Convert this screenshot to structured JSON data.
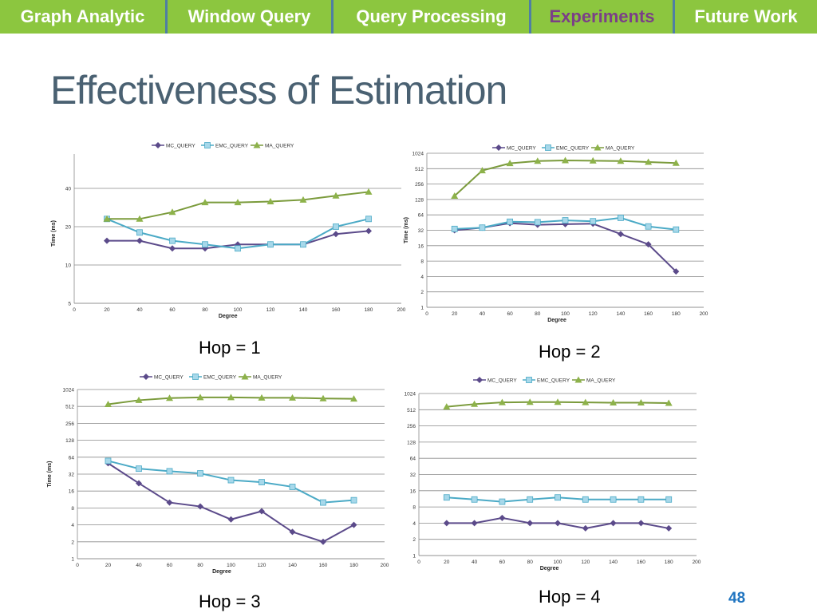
{
  "nav": {
    "tabs": [
      {
        "label": "Graph Analytic"
      },
      {
        "label": "Window Query"
      },
      {
        "label": "Query Processing"
      },
      {
        "label": "Experiments",
        "active": true
      },
      {
        "label": "Future Work"
      }
    ]
  },
  "slide": {
    "title": "Effectiveness of Estimation",
    "page_number": "48"
  },
  "colors": {
    "nav_bg": "#8cc63f",
    "active_tab": "#7b3f87",
    "title": "#4a6172",
    "mc": "#5b4a8a",
    "emc": "#4baac6",
    "emc_marker": "#a7d8ea",
    "ma": "#7b9b3c",
    "ma_marker": "#8db24a"
  },
  "chart_data": [
    {
      "type": "line",
      "caption": "Hop = 1",
      "xlabel": "Degree",
      "ylabel": "Time (ms)",
      "x_ticks": [
        "0",
        "20",
        "40",
        "60",
        "80",
        "100",
        "120",
        "140",
        "160",
        "180",
        "200"
      ],
      "y_ticks": [
        "5",
        "10",
        "20",
        "40"
      ],
      "x": [
        20,
        40,
        60,
        80,
        100,
        120,
        140,
        160,
        180
      ],
      "series": [
        {
          "name": "MC_QUERY",
          "values": [
            15.5,
            15.5,
            13.5,
            13.5,
            14.5,
            14.5,
            14.5,
            17.5,
            18.5
          ]
        },
        {
          "name": "EMC_QUERY",
          "values": [
            23,
            18,
            15.5,
            14.5,
            13.5,
            14.5,
            14.5,
            20,
            23
          ]
        },
        {
          "name": "MA_QUERY",
          "values": [
            23,
            23,
            26,
            31,
            31,
            31.5,
            32.5,
            35,
            37.5
          ]
        }
      ]
    },
    {
      "type": "line",
      "caption": "Hop = 2",
      "xlabel": "Degree",
      "ylabel": "Time (ms)",
      "x_ticks": [
        "0",
        "20",
        "40",
        "60",
        "80",
        "100",
        "120",
        "140",
        "160",
        "180",
        "200"
      ],
      "y_ticks": [
        "1",
        "2",
        "4",
        "8",
        "16",
        "32",
        "64",
        "128",
        "256",
        "512",
        "1024"
      ],
      "x": [
        20,
        40,
        60,
        80,
        100,
        120,
        140,
        160,
        180
      ],
      "series": [
        {
          "name": "MC_QUERY",
          "values": [
            32,
            36,
            44,
            41,
            42,
            43,
            27,
            17,
            5
          ]
        },
        {
          "name": "EMC_QUERY",
          "values": [
            34,
            36,
            47,
            46,
            50,
            48,
            56,
            38,
            33
          ]
        },
        {
          "name": "MA_QUERY",
          "values": [
            150,
            470,
            650,
            720,
            740,
            730,
            720,
            690,
            660
          ]
        }
      ]
    },
    {
      "type": "line",
      "caption": "Hop = 3",
      "xlabel": "Degree",
      "ylabel": "Time (ms)",
      "x_ticks": [
        "0",
        "20",
        "40",
        "60",
        "80",
        "100",
        "120",
        "140",
        "160",
        "180",
        "200"
      ],
      "y_ticks": [
        "1",
        "2",
        "4",
        "8",
        "16",
        "32",
        "64",
        "128",
        "256",
        "512",
        "1024"
      ],
      "x": [
        20,
        40,
        60,
        80,
        100,
        120,
        140,
        160,
        180
      ],
      "series": [
        {
          "name": "MC_QUERY",
          "values": [
            50,
            22,
            10,
            8.5,
            5,
            7,
            3,
            2,
            4
          ]
        },
        {
          "name": "EMC_QUERY",
          "values": [
            55,
            40,
            36,
            33,
            25,
            23,
            19,
            10,
            11
          ]
        },
        {
          "name": "MA_QUERY",
          "values": [
            560,
            660,
            720,
            740,
            740,
            730,
            730,
            710,
            700
          ]
        }
      ]
    },
    {
      "type": "line",
      "caption": "Hop = 4",
      "xlabel": "Degree",
      "ylabel": "",
      "x_ticks": [
        "0",
        "20",
        "40",
        "60",
        "80",
        "100",
        "120",
        "140",
        "160",
        "180",
        "200"
      ],
      "y_ticks": [
        "1",
        "2",
        "4",
        "8",
        "16",
        "32",
        "64",
        "128",
        "256",
        "512",
        "1024"
      ],
      "x": [
        20,
        40,
        60,
        80,
        100,
        120,
        140,
        160,
        180
      ],
      "series": [
        {
          "name": "MC_QUERY",
          "values": [
            4,
            4,
            5,
            4,
            4,
            3.2,
            4,
            4,
            3.2
          ]
        },
        {
          "name": "EMC_QUERY",
          "values": [
            12,
            11,
            10,
            11,
            12,
            11,
            11,
            11,
            11
          ]
        },
        {
          "name": "MA_QUERY",
          "values": [
            580,
            650,
            700,
            710,
            710,
            700,
            690,
            690,
            680
          ]
        }
      ]
    }
  ]
}
